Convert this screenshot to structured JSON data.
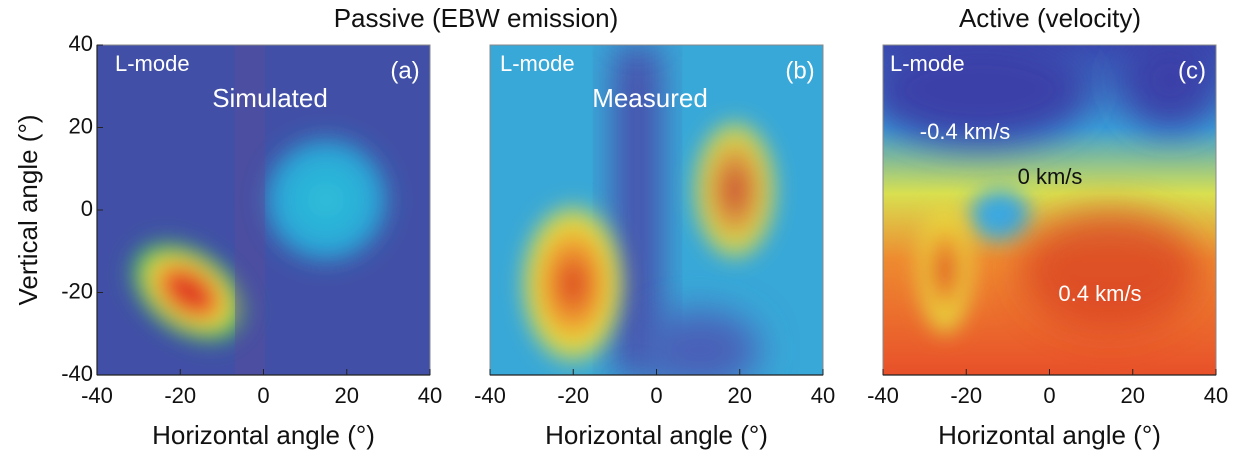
{
  "headers": [
    "Passive (EBW emission)",
    "Active (velocity)"
  ],
  "chart_data": [
    {
      "type": "heatmap",
      "xlabel": "Horizontal angle (°)",
      "ylabel": "Vertical angle (°)",
      "xlim": [
        -40,
        40
      ],
      "ylim": [
        -40,
        40
      ],
      "xticks": [
        -40,
        -20,
        0,
        20,
        40
      ],
      "yticks": [
        -40,
        -20,
        0,
        20,
        40
      ],
      "annotations": [
        "L-mode",
        "(a)",
        "Simulated"
      ]
    },
    {
      "type": "heatmap",
      "xlabel": "Horizontal angle (°)",
      "xlim": [
        -40,
        40
      ],
      "ylim": [
        -40,
        40
      ],
      "xticks": [
        -40,
        -20,
        0,
        20,
        40
      ],
      "annotations": [
        "L-mode",
        "(b)",
        "Measured"
      ]
    },
    {
      "type": "heatmap",
      "xlabel": "Horizontal angle (°)",
      "xlim": [
        -40,
        40
      ],
      "ylim": [
        -40,
        40
      ],
      "xticks": [
        -40,
        -20,
        0,
        20,
        40
      ],
      "annotations": [
        "L-mode",
        "(c)",
        "-0.4 km/s",
        "0 km/s",
        "0.4 km/s"
      ]
    }
  ]
}
